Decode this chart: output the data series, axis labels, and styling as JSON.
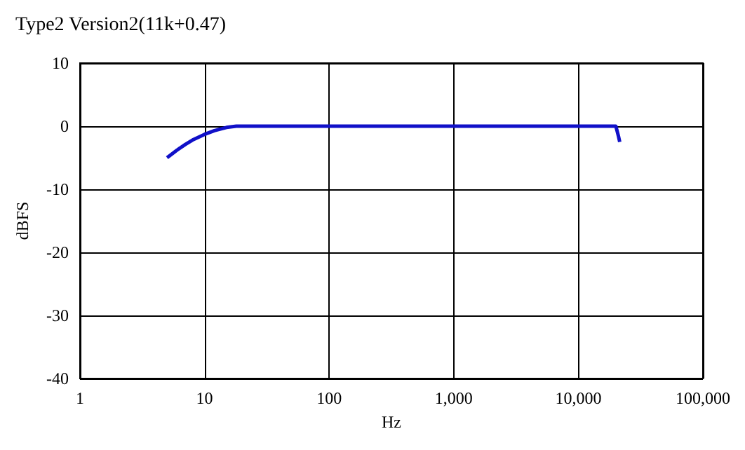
{
  "chart_data": {
    "type": "line",
    "title": "Type2 Version2(11k+0.47)",
    "xlabel": "Hz",
    "ylabel": "dBFS",
    "log": "x",
    "grid": true,
    "marker": "none",
    "line_style": "solid",
    "xlim": [
      1,
      100000
    ],
    "xticks": [
      1,
      10,
      100,
      {
        "value": 1000,
        "label": "1,000"
      },
      {
        "value": 10000,
        "label": "10,000"
      },
      {
        "value": 100000,
        "label": "100,000"
      }
    ],
    "ylim": [
      -40,
      10
    ],
    "yticks": [
      -40,
      -30,
      -20,
      -10,
      0,
      10
    ],
    "series": [
      {
        "color": "#1010c8",
        "x": [
          5,
          6,
          7,
          8,
          10,
          12,
          15,
          18,
          100,
          1000,
          10000,
          20000,
          20500,
          21000,
          21500
        ],
        "values": [
          -5,
          -3.8,
          -2.9,
          -2.2,
          -1.3,
          -0.7,
          -0.2,
          0,
          0,
          0,
          0,
          0,
          -0.8,
          -1.6,
          -2.5
        ]
      }
    ]
  }
}
